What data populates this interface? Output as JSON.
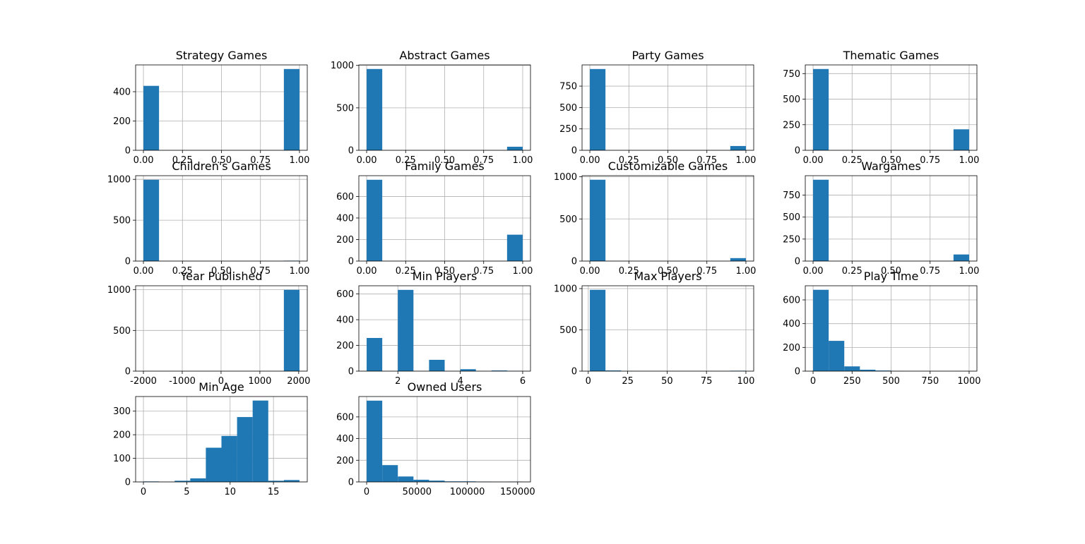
{
  "chart_data": [
    {
      "type": "histogram",
      "title": "Strategy Games",
      "color": "#1f77b4",
      "grid": true,
      "bins": [
        0,
        0.1,
        0.2,
        0.3,
        0.4,
        0.5,
        0.6,
        0.7,
        0.8,
        0.9,
        1
      ],
      "values": [
        440,
        0,
        0,
        0,
        0,
        0,
        0,
        0,
        0,
        555
      ],
      "xlim": [
        -0.05,
        1.05
      ],
      "ylim": [
        0,
        583
      ],
      "xticks": [
        {
          "value": 0,
          "label": "0.00"
        },
        {
          "value": 0.25,
          "label": "0.25"
        },
        {
          "value": 0.5,
          "label": "0.50"
        },
        {
          "value": 0.75,
          "label": "0.75"
        },
        {
          "value": 1,
          "label": "1.00"
        }
      ],
      "yticks": [
        0,
        200,
        400
      ]
    },
    {
      "type": "histogram",
      "title": "Abstract Games",
      "color": "#1f77b4",
      "grid": true,
      "bins": [
        0,
        0.1,
        0.2,
        0.3,
        0.4,
        0.5,
        0.6,
        0.7,
        0.8,
        0.9,
        1
      ],
      "values": [
        958,
        0,
        0,
        0,
        0,
        0,
        0,
        0,
        0,
        42
      ],
      "xlim": [
        -0.05,
        1.05
      ],
      "ylim": [
        0,
        1006
      ],
      "xticks": [
        {
          "value": 0,
          "label": "0.00"
        },
        {
          "value": 0.25,
          "label": "0.25"
        },
        {
          "value": 0.5,
          "label": "0.50"
        },
        {
          "value": 0.75,
          "label": "0.75"
        },
        {
          "value": 1,
          "label": "1.00"
        }
      ],
      "yticks": [
        0,
        500,
        1000
      ]
    },
    {
      "type": "histogram",
      "title": "Party Games",
      "color": "#1f77b4",
      "grid": true,
      "bins": [
        0,
        0.1,
        0.2,
        0.3,
        0.4,
        0.5,
        0.6,
        0.7,
        0.8,
        0.9,
        1
      ],
      "values": [
        950,
        0,
        0,
        0,
        0,
        0,
        0,
        0,
        0,
        50
      ],
      "xlim": [
        -0.05,
        1.05
      ],
      "ylim": [
        0,
        998
      ],
      "xticks": [
        {
          "value": 0,
          "label": "0.00"
        },
        {
          "value": 0.25,
          "label": "0.25"
        },
        {
          "value": 0.5,
          "label": "0.50"
        },
        {
          "value": 0.75,
          "label": "0.75"
        },
        {
          "value": 1,
          "label": "1.00"
        }
      ],
      "yticks": [
        0,
        250,
        500,
        750
      ]
    },
    {
      "type": "histogram",
      "title": "Thematic Games",
      "color": "#1f77b4",
      "grid": true,
      "bins": [
        0,
        0.1,
        0.2,
        0.3,
        0.4,
        0.5,
        0.6,
        0.7,
        0.8,
        0.9,
        1
      ],
      "values": [
        795,
        0,
        0,
        0,
        0,
        0,
        0,
        0,
        0,
        205
      ],
      "xlim": [
        -0.05,
        1.05
      ],
      "ylim": [
        0,
        835
      ],
      "xticks": [
        {
          "value": 0,
          "label": "0.00"
        },
        {
          "value": 0.25,
          "label": "0.25"
        },
        {
          "value": 0.5,
          "label": "0.50"
        },
        {
          "value": 0.75,
          "label": "0.75"
        },
        {
          "value": 1,
          "label": "1.00"
        }
      ],
      "yticks": [
        0,
        250,
        500,
        750
      ]
    },
    {
      "type": "histogram",
      "title": "Children's Games",
      "color": "#1f77b4",
      "grid": true,
      "bins": [
        0,
        0.1,
        0.2,
        0.3,
        0.4,
        0.5,
        0.6,
        0.7,
        0.8,
        0.9,
        1
      ],
      "values": [
        995,
        0,
        0,
        0,
        0,
        0,
        0,
        0,
        0,
        5
      ],
      "xlim": [
        -0.05,
        1.05
      ],
      "ylim": [
        0,
        1045
      ],
      "xticks": [
        {
          "value": 0,
          "label": "0.00"
        },
        {
          "value": 0.25,
          "label": "0.25"
        },
        {
          "value": 0.5,
          "label": "0.50"
        },
        {
          "value": 0.75,
          "label": "0.75"
        },
        {
          "value": 1,
          "label": "1.00"
        }
      ],
      "yticks": [
        0,
        500,
        1000
      ]
    },
    {
      "type": "histogram",
      "title": "Family Games",
      "color": "#1f77b4",
      "grid": true,
      "bins": [
        0,
        0.1,
        0.2,
        0.3,
        0.4,
        0.5,
        0.6,
        0.7,
        0.8,
        0.9,
        1
      ],
      "values": [
        755,
        0,
        0,
        0,
        0,
        0,
        0,
        0,
        0,
        245
      ],
      "xlim": [
        -0.05,
        1.05
      ],
      "ylim": [
        0,
        793
      ],
      "xticks": [
        {
          "value": 0,
          "label": "0.00"
        },
        {
          "value": 0.25,
          "label": "0.25"
        },
        {
          "value": 0.5,
          "label": "0.50"
        },
        {
          "value": 0.75,
          "label": "0.75"
        },
        {
          "value": 1,
          "label": "1.00"
        }
      ],
      "yticks": [
        0,
        200,
        400,
        600
      ]
    },
    {
      "type": "histogram",
      "title": "Customizable Games",
      "color": "#1f77b4",
      "grid": true,
      "bins": [
        0,
        0.1,
        0.2,
        0.3,
        0.4,
        0.5,
        0.6,
        0.7,
        0.8,
        0.9,
        1
      ],
      "values": [
        965,
        0,
        0,
        0,
        0,
        0,
        0,
        0,
        0,
        35
      ],
      "xlim": [
        -0.05,
        1.05
      ],
      "ylim": [
        0,
        1013
      ],
      "xticks": [
        {
          "value": 0,
          "label": "0.00"
        },
        {
          "value": 0.25,
          "label": "0.25"
        },
        {
          "value": 0.5,
          "label": "0.50"
        },
        {
          "value": 0.75,
          "label": "0.75"
        },
        {
          "value": 1,
          "label": "1.00"
        }
      ],
      "yticks": [
        0,
        500,
        1000
      ]
    },
    {
      "type": "histogram",
      "title": "Wargames",
      "color": "#1f77b4",
      "grid": true,
      "bins": [
        0,
        0.1,
        0.2,
        0.3,
        0.4,
        0.5,
        0.6,
        0.7,
        0.8,
        0.9,
        1
      ],
      "values": [
        925,
        0,
        0,
        0,
        0,
        0,
        0,
        0,
        0,
        75
      ],
      "xlim": [
        -0.05,
        1.05
      ],
      "ylim": [
        0,
        971
      ],
      "xticks": [
        {
          "value": 0,
          "label": "0.00"
        },
        {
          "value": 0.25,
          "label": "0.25"
        },
        {
          "value": 0.5,
          "label": "0.50"
        },
        {
          "value": 0.75,
          "label": "0.75"
        },
        {
          "value": 1,
          "label": "1.00"
        }
      ],
      "yticks": [
        0,
        250,
        500,
        750
      ]
    },
    {
      "type": "histogram",
      "title": "Year Published",
      "color": "#1f77b4",
      "grid": true,
      "bins": [
        -2000,
        -1598,
        -1196,
        -794,
        -392,
        10,
        412,
        814,
        1216,
        1618,
        2020
      ],
      "values": [
        1,
        0,
        0,
        0,
        0,
        0,
        0,
        0,
        0,
        999
      ],
      "xlim": [
        -2201,
        2221
      ],
      "ylim": [
        0,
        1049
      ],
      "xticks": [
        -2000,
        -1000,
        0,
        1000,
        2000
      ],
      "yticks": [
        0,
        500,
        1000
      ]
    },
    {
      "type": "histogram",
      "title": "Min Players",
      "color": "#1f77b4",
      "grid": true,
      "bins": [
        1,
        1.5,
        2,
        2.5,
        3,
        3.5,
        4,
        4.5,
        5,
        5.5,
        6
      ],
      "values": [
        258,
        0,
        632,
        0,
        88,
        0,
        15,
        0,
        5,
        2
      ],
      "xlim": [
        0.75,
        6.25
      ],
      "ylim": [
        0,
        664
      ],
      "xticks": [
        2,
        4,
        6
      ],
      "yticks": [
        0,
        200,
        400,
        600
      ]
    },
    {
      "type": "histogram",
      "title": "Max Players",
      "color": "#1f77b4",
      "grid": true,
      "bins": [
        1,
        10.9,
        20.8,
        30.7,
        40.6,
        50.5,
        60.4,
        70.3,
        80.2,
        90.1,
        100
      ],
      "values": [
        985,
        8,
        2,
        0,
        0,
        0,
        0,
        0,
        0,
        5
      ],
      "xlim": [
        -3.95,
        104.95
      ],
      "ylim": [
        0,
        1034
      ],
      "xticks": [
        0,
        25,
        50,
        75,
        100
      ],
      "yticks": [
        0,
        500,
        1000
      ]
    },
    {
      "type": "histogram",
      "title": "Play Time",
      "color": "#1f77b4",
      "grid": true,
      "bins": [
        0,
        100,
        200,
        300,
        400,
        500,
        600,
        700,
        800,
        900,
        1000
      ],
      "values": [
        685,
        255,
        40,
        12,
        5,
        1,
        0,
        0,
        0,
        1
      ],
      "xlim": [
        -50,
        1050
      ],
      "ylim": [
        0,
        719
      ],
      "xticks": [
        0,
        250,
        500,
        750,
        1000
      ],
      "yticks": [
        0,
        200,
        400,
        600
      ]
    },
    {
      "type": "histogram",
      "title": "Min Age",
      "color": "#1f77b4",
      "grid": true,
      "bins": [
        0,
        1.8,
        3.6,
        5.4,
        7.2,
        9,
        10.8,
        12.6,
        14.4,
        16.2,
        18
      ],
      "values": [
        2,
        0,
        5,
        15,
        145,
        195,
        275,
        345,
        5,
        8
      ],
      "xlim": [
        -0.9,
        18.9
      ],
      "ylim": [
        0,
        362
      ],
      "xticks": [
        0,
        5,
        10,
        15
      ],
      "yticks": [
        0,
        100,
        200,
        300
      ]
    },
    {
      "type": "histogram",
      "title": "Owned Users",
      "color": "#1f77b4",
      "grid": true,
      "bins": [
        0,
        15500,
        31000,
        46500,
        62000,
        77500,
        93000,
        108500,
        124000,
        139500,
        155000
      ],
      "values": [
        750,
        155,
        50,
        20,
        12,
        5,
        5,
        3,
        0,
        3
      ],
      "xlim": [
        -7750,
        162750
      ],
      "ylim": [
        0,
        788
      ],
      "xticks": [
        0,
        50000,
        100000,
        150000
      ],
      "yticks": [
        0,
        200,
        400,
        600
      ]
    }
  ]
}
